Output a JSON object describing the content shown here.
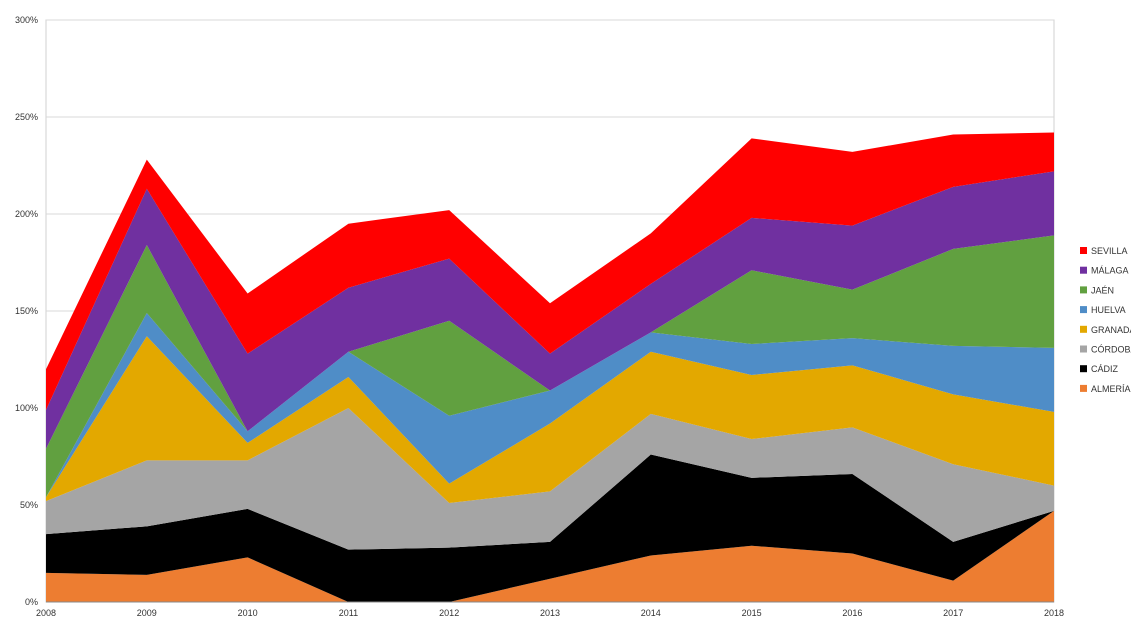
{
  "chart_data": {
    "type": "area",
    "stacked": true,
    "title": "",
    "xlabel": "",
    "ylabel": "",
    "x": [
      "2008",
      "2009",
      "2010",
      "2011",
      "2012",
      "2013",
      "2014",
      "2015",
      "2016",
      "2017",
      "2018"
    ],
    "ylim": [
      0,
      300
    ],
    "y_ticks": [
      "0%",
      "50%",
      "100%",
      "150%",
      "200%",
      "250%",
      "300%"
    ],
    "grid": true,
    "legend_position": "right",
    "series": [
      {
        "name": "ALMERÍA",
        "color": "#ED7D31",
        "values": [
          15,
          14,
          23,
          0,
          0,
          12,
          24,
          29,
          25,
          11,
          47
        ]
      },
      {
        "name": "CÁDIZ",
        "color": "#000000",
        "values": [
          20,
          25,
          25,
          27,
          28,
          19,
          52,
          35,
          41,
          20,
          0
        ]
      },
      {
        "name": "CÓRDOBA",
        "color": "#A5A5A5",
        "values": [
          17,
          34,
          25,
          73,
          23,
          26,
          21,
          20,
          24,
          40,
          13
        ]
      },
      {
        "name": "GRANADA",
        "color": "#E3A800",
        "values": [
          2,
          64,
          9,
          16,
          10,
          35,
          32,
          33,
          32,
          36,
          38
        ]
      },
      {
        "name": "HUELVA",
        "color": "#4F8DC7",
        "values": [
          0,
          12,
          6,
          13,
          35,
          17,
          10,
          16,
          14,
          25,
          33
        ]
      },
      {
        "name": "JAÉN",
        "color": "#61A040",
        "values": [
          25,
          35,
          0,
          0,
          49,
          0,
          0,
          38,
          25,
          50,
          58
        ]
      },
      {
        "name": "MÁLAGA",
        "color": "#7030A0",
        "values": [
          20,
          29,
          40,
          33,
          32,
          19,
          25,
          27,
          33,
          32,
          33
        ]
      },
      {
        "name": "SEVILLA",
        "color": "#FF0000",
        "values": [
          21,
          15,
          31,
          33,
          25,
          26,
          26,
          41,
          38,
          27,
          20
        ]
      }
    ]
  }
}
